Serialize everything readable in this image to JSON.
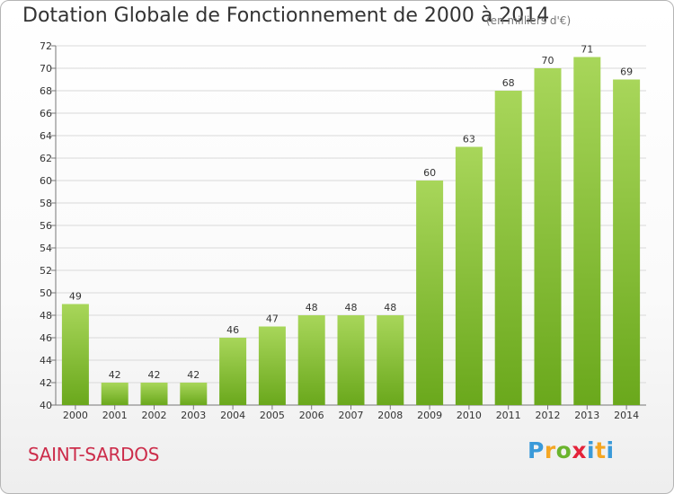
{
  "title": "Dotation Globale de Fonctionnement de 2000 à 2014",
  "subtitle": "(en milliers d'€)",
  "commune": "SAINT-SARDOS",
  "logo_text": "Proxiti",
  "colors": {
    "bar_light": "#a8d65a",
    "bar_dark": "#6aa81c",
    "grid": "#d7d7d7",
    "title": "#333333",
    "commune": "#cc2c4a"
  },
  "chart_data": {
    "type": "bar",
    "title": "Dotation Globale de Fonctionnement de 2000 à 2014",
    "subtitle": "(en milliers d'€)",
    "categories": [
      "2000",
      "2001",
      "2002",
      "2003",
      "2004",
      "2005",
      "2006",
      "2007",
      "2008",
      "2009",
      "2010",
      "2011",
      "2012",
      "2013",
      "2014"
    ],
    "values": [
      49,
      42,
      42,
      42,
      46,
      47,
      48,
      48,
      48,
      60,
      63,
      68,
      70,
      71,
      69
    ],
    "ylim": [
      40,
      72
    ],
    "yticks": [
      40,
      42,
      44,
      46,
      48,
      50,
      52,
      54,
      56,
      58,
      60,
      62,
      64,
      66,
      68,
      70,
      72
    ],
    "grid": true,
    "xlabel": "",
    "ylabel": ""
  }
}
